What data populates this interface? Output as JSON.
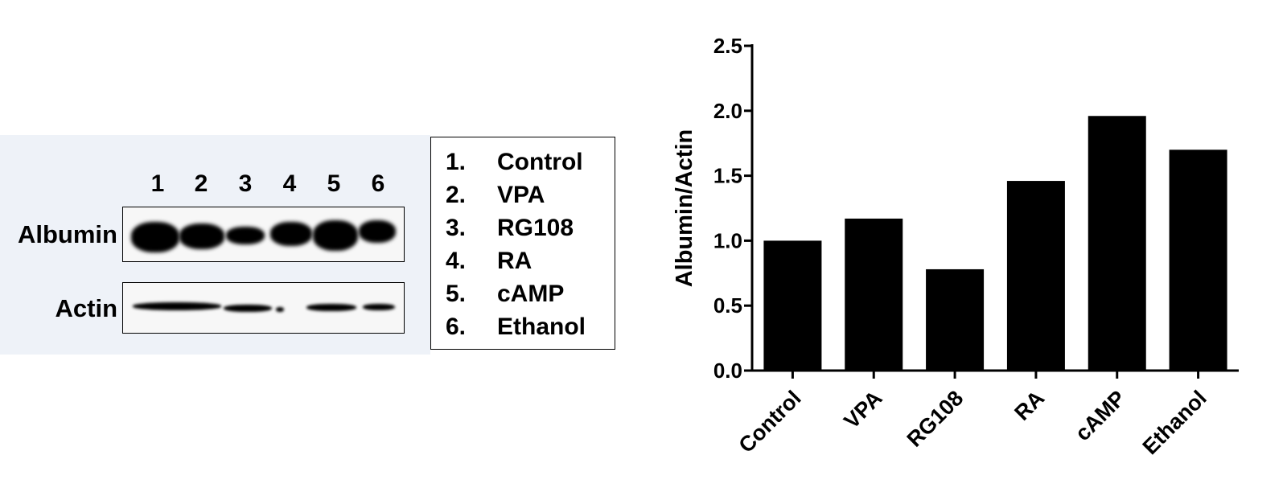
{
  "blot": {
    "lanes": [
      "1",
      "2",
      "3",
      "4",
      "5",
      "6"
    ],
    "rows": [
      {
        "label": "Albumin"
      },
      {
        "label": "Actin"
      }
    ]
  },
  "legend": [
    {
      "num": "1.",
      "label": "Control"
    },
    {
      "num": "2.",
      "label": "VPA"
    },
    {
      "num": "3.",
      "label": "RG108"
    },
    {
      "num": "4.",
      "label": "RA"
    },
    {
      "num": "5.",
      "label": "cAMP"
    },
    {
      "num": "6.",
      "label": "Ethanol"
    }
  ],
  "chart_data": {
    "type": "bar",
    "categories": [
      "Control",
      "VPA",
      "RG108",
      "RA",
      "cAMP",
      "Ethanol"
    ],
    "values": [
      1.0,
      1.17,
      0.78,
      1.46,
      1.96,
      1.7
    ],
    "ylabel": "Albumin/Actin",
    "ylim": [
      0,
      2.5
    ],
    "yticks": [
      "0.0",
      "0.5",
      "1.0",
      "1.5",
      "2.0",
      "2.5"
    ],
    "bar_color": "#000000",
    "grid": false
  }
}
